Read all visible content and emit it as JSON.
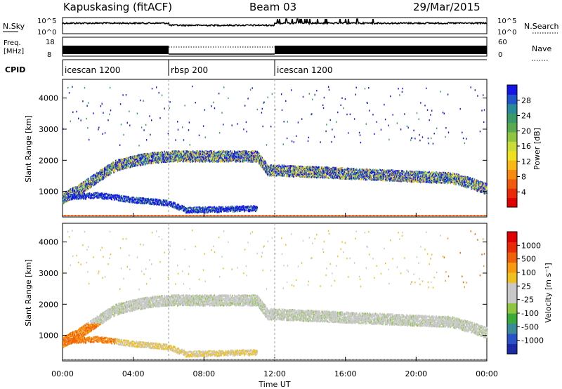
{
  "header": {
    "station": "Kapuskasing (fitACF)",
    "beam": "Beam 03",
    "date": "29/Mar/2015"
  },
  "noise_panel": {
    "left_label": "N.Sky",
    "left_ticks": [
      "10^5",
      "10^0"
    ],
    "right_ticks": [
      "10^5",
      "10^0"
    ],
    "right_label": "N.Search"
  },
  "freq_panel": {
    "left_label_line1": "Freq.",
    "left_label_line2": "[MHz]",
    "left_ticks": [
      "18",
      "8"
    ],
    "right_ticks": [
      "60",
      "0"
    ],
    "right_label": "Nave"
  },
  "cpid_panel": {
    "label": "CPID",
    "segments": [
      {
        "name": "icescan 1200",
        "start_h": 0,
        "end_h": 6
      },
      {
        "name": "rbsp 200",
        "start_h": 6,
        "end_h": 12
      },
      {
        "name": "icescan 1200",
        "start_h": 12,
        "end_h": 24
      }
    ]
  },
  "power_panel": {
    "ylabel": "Slant Range [km]",
    "colorbar_label": "Power [dB]",
    "colorbar_ticks": [
      "28",
      "24",
      "20",
      "16",
      "12",
      "8",
      "4"
    ],
    "colors": [
      "#1515e8",
      "#1f55c8",
      "#2a8a9a",
      "#3a9a6a",
      "#5aaa50",
      "#8ec63f",
      "#c8dc3a",
      "#f0e020",
      "#f8b818",
      "#f88a10",
      "#f05a0a",
      "#e82a08",
      "#e00000"
    ]
  },
  "velocity_panel": {
    "ylabel": "Slant Range [km]",
    "colorbar_label": "Velocity [m s⁻¹]",
    "colorbar_ticks": [
      "1000",
      "500",
      "100",
      "25",
      "-25",
      "-100",
      "-500",
      "-1000"
    ],
    "colors": [
      "#1c2aa8",
      "#2a52c8",
      "#3a8a9a",
      "#3aaa3a",
      "#8ec63f",
      "#c8c8c8",
      "#c8c8c8",
      "#f0c020",
      "#f89a10",
      "#f0600a",
      "#e82a08",
      "#e00000"
    ]
  },
  "x_axis": {
    "label": "Time UT",
    "ticks": [
      "00:00",
      "04:00",
      "08:00",
      "12:00",
      "16:00",
      "20:00",
      "00:00"
    ]
  },
  "chart_data": {
    "type": "heatmap",
    "title": "Kapuskasing (fitACF)   Beam 03   29/Mar/2015",
    "xlabel": "Time UT",
    "ylabel": "Slant Range [km]",
    "xlim_hours": [
      0,
      24
    ],
    "ylim_km": [
      180,
      4600
    ],
    "y_ticks_km": [
      1000,
      2000,
      3000,
      4000
    ],
    "series": [
      {
        "name": "Power [dB]",
        "range": [
          0,
          30
        ]
      },
      {
        "name": "Velocity [m s⁻¹]",
        "range": [
          -1000,
          1000
        ]
      }
    ],
    "main_echo_band_km": [
      [
        0,
        800
      ],
      [
        1,
        1100
      ],
      [
        2,
        1500
      ],
      [
        3,
        1850
      ],
      [
        4,
        2000
      ],
      [
        5,
        2100
      ],
      [
        6,
        2150
      ],
      [
        8,
        2150
      ],
      [
        10,
        2150
      ],
      [
        11,
        2150
      ],
      [
        11.6,
        1700
      ],
      [
        12,
        1700
      ],
      [
        14,
        1650
      ],
      [
        16,
        1600
      ],
      [
        18,
        1550
      ],
      [
        20,
        1500
      ],
      [
        22,
        1450
      ],
      [
        23,
        1300
      ],
      [
        24,
        1100
      ]
    ],
    "lower_band_km": [
      [
        0.5,
        850
      ],
      [
        2,
        900
      ],
      [
        4,
        750
      ],
      [
        6,
        650
      ],
      [
        7,
        420
      ],
      [
        9,
        450
      ],
      [
        11,
        480
      ]
    ]
  }
}
